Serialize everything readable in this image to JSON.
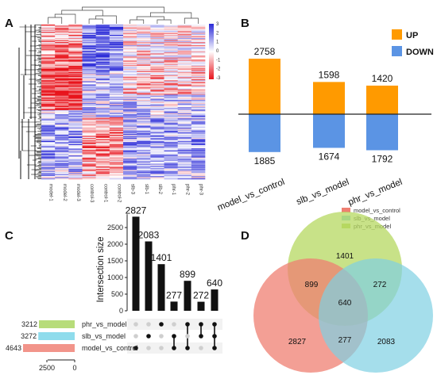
{
  "panels": {
    "a": "A",
    "b": "B",
    "c": "C",
    "d": "D"
  },
  "chart_data": [
    {
      "type": "heatmap",
      "columns": [
        "model-1",
        "model-2",
        "model-3",
        "control-3",
        "control-1",
        "control-2",
        "slb-3",
        "slb-1",
        "slb-2",
        "phr-1",
        "phr-2",
        "phr-3"
      ],
      "colorbar_ticks": [
        "3",
        "2",
        "1",
        "0",
        "-1",
        "-2",
        "-3"
      ],
      "colors": {
        "high": "#2b2bd8",
        "mid": "#ffffff",
        "low": "#e8141c"
      }
    },
    {
      "type": "bar",
      "categories": [
        "model_vs_control",
        "slb_vs_model",
        "phr_vs_model"
      ],
      "series": [
        {
          "name": "UP",
          "values": [
            2758,
            1598,
            1420
          ],
          "color": "#ff9a00"
        },
        {
          "name": "DOWN",
          "values": [
            1885,
            1674,
            1792
          ],
          "color": "#5b94e4"
        }
      ],
      "legend": "top-right"
    },
    {
      "type": "bar",
      "subtype": "upset",
      "ylabel": "Intersection size",
      "yticks": [
        0,
        500,
        1000,
        1500,
        2000,
        2500
      ],
      "intersections": [
        {
          "value": 2827,
          "sets": [
            "model_vs_control"
          ]
        },
        {
          "value": 2083,
          "sets": [
            "slb_vs_model"
          ]
        },
        {
          "value": 1401,
          "sets": [
            "phr_vs_model"
          ]
        },
        {
          "value": 277,
          "sets": [
            "slb_vs_model",
            "model_vs_control"
          ]
        },
        {
          "value": 899,
          "sets": [
            "phr_vs_model",
            "model_vs_control"
          ]
        },
        {
          "value": 272,
          "sets": [
            "phr_vs_model",
            "slb_vs_model"
          ]
        },
        {
          "value": 640,
          "sets": [
            "phr_vs_model",
            "slb_vs_model",
            "model_vs_control"
          ]
        }
      ],
      "sets": [
        {
          "name": "phr_vs_model",
          "size": 3212,
          "color": "#b7dc7a"
        },
        {
          "name": "slb_vs_model",
          "size": 3272,
          "color": "#8fdcec"
        },
        {
          "name": "model_vs_control",
          "size": 4643,
          "color": "#f2948a"
        }
      ],
      "set_size_ticks": [
        "2500",
        "0"
      ]
    },
    {
      "type": "venn",
      "legend": [
        "model_vs_control",
        "slb_vs_model",
        "phr_vs_model"
      ],
      "colors": [
        "#ef7f72",
        "#7fd0e2",
        "#b6d860"
      ],
      "regions": {
        "model_only": 2827,
        "slb_only": 2083,
        "phr_only": 1401,
        "model_phr": 899,
        "slb_phr": 272,
        "model_slb": 277,
        "all": 640
      },
      "legend_placement": "top-right"
    }
  ]
}
